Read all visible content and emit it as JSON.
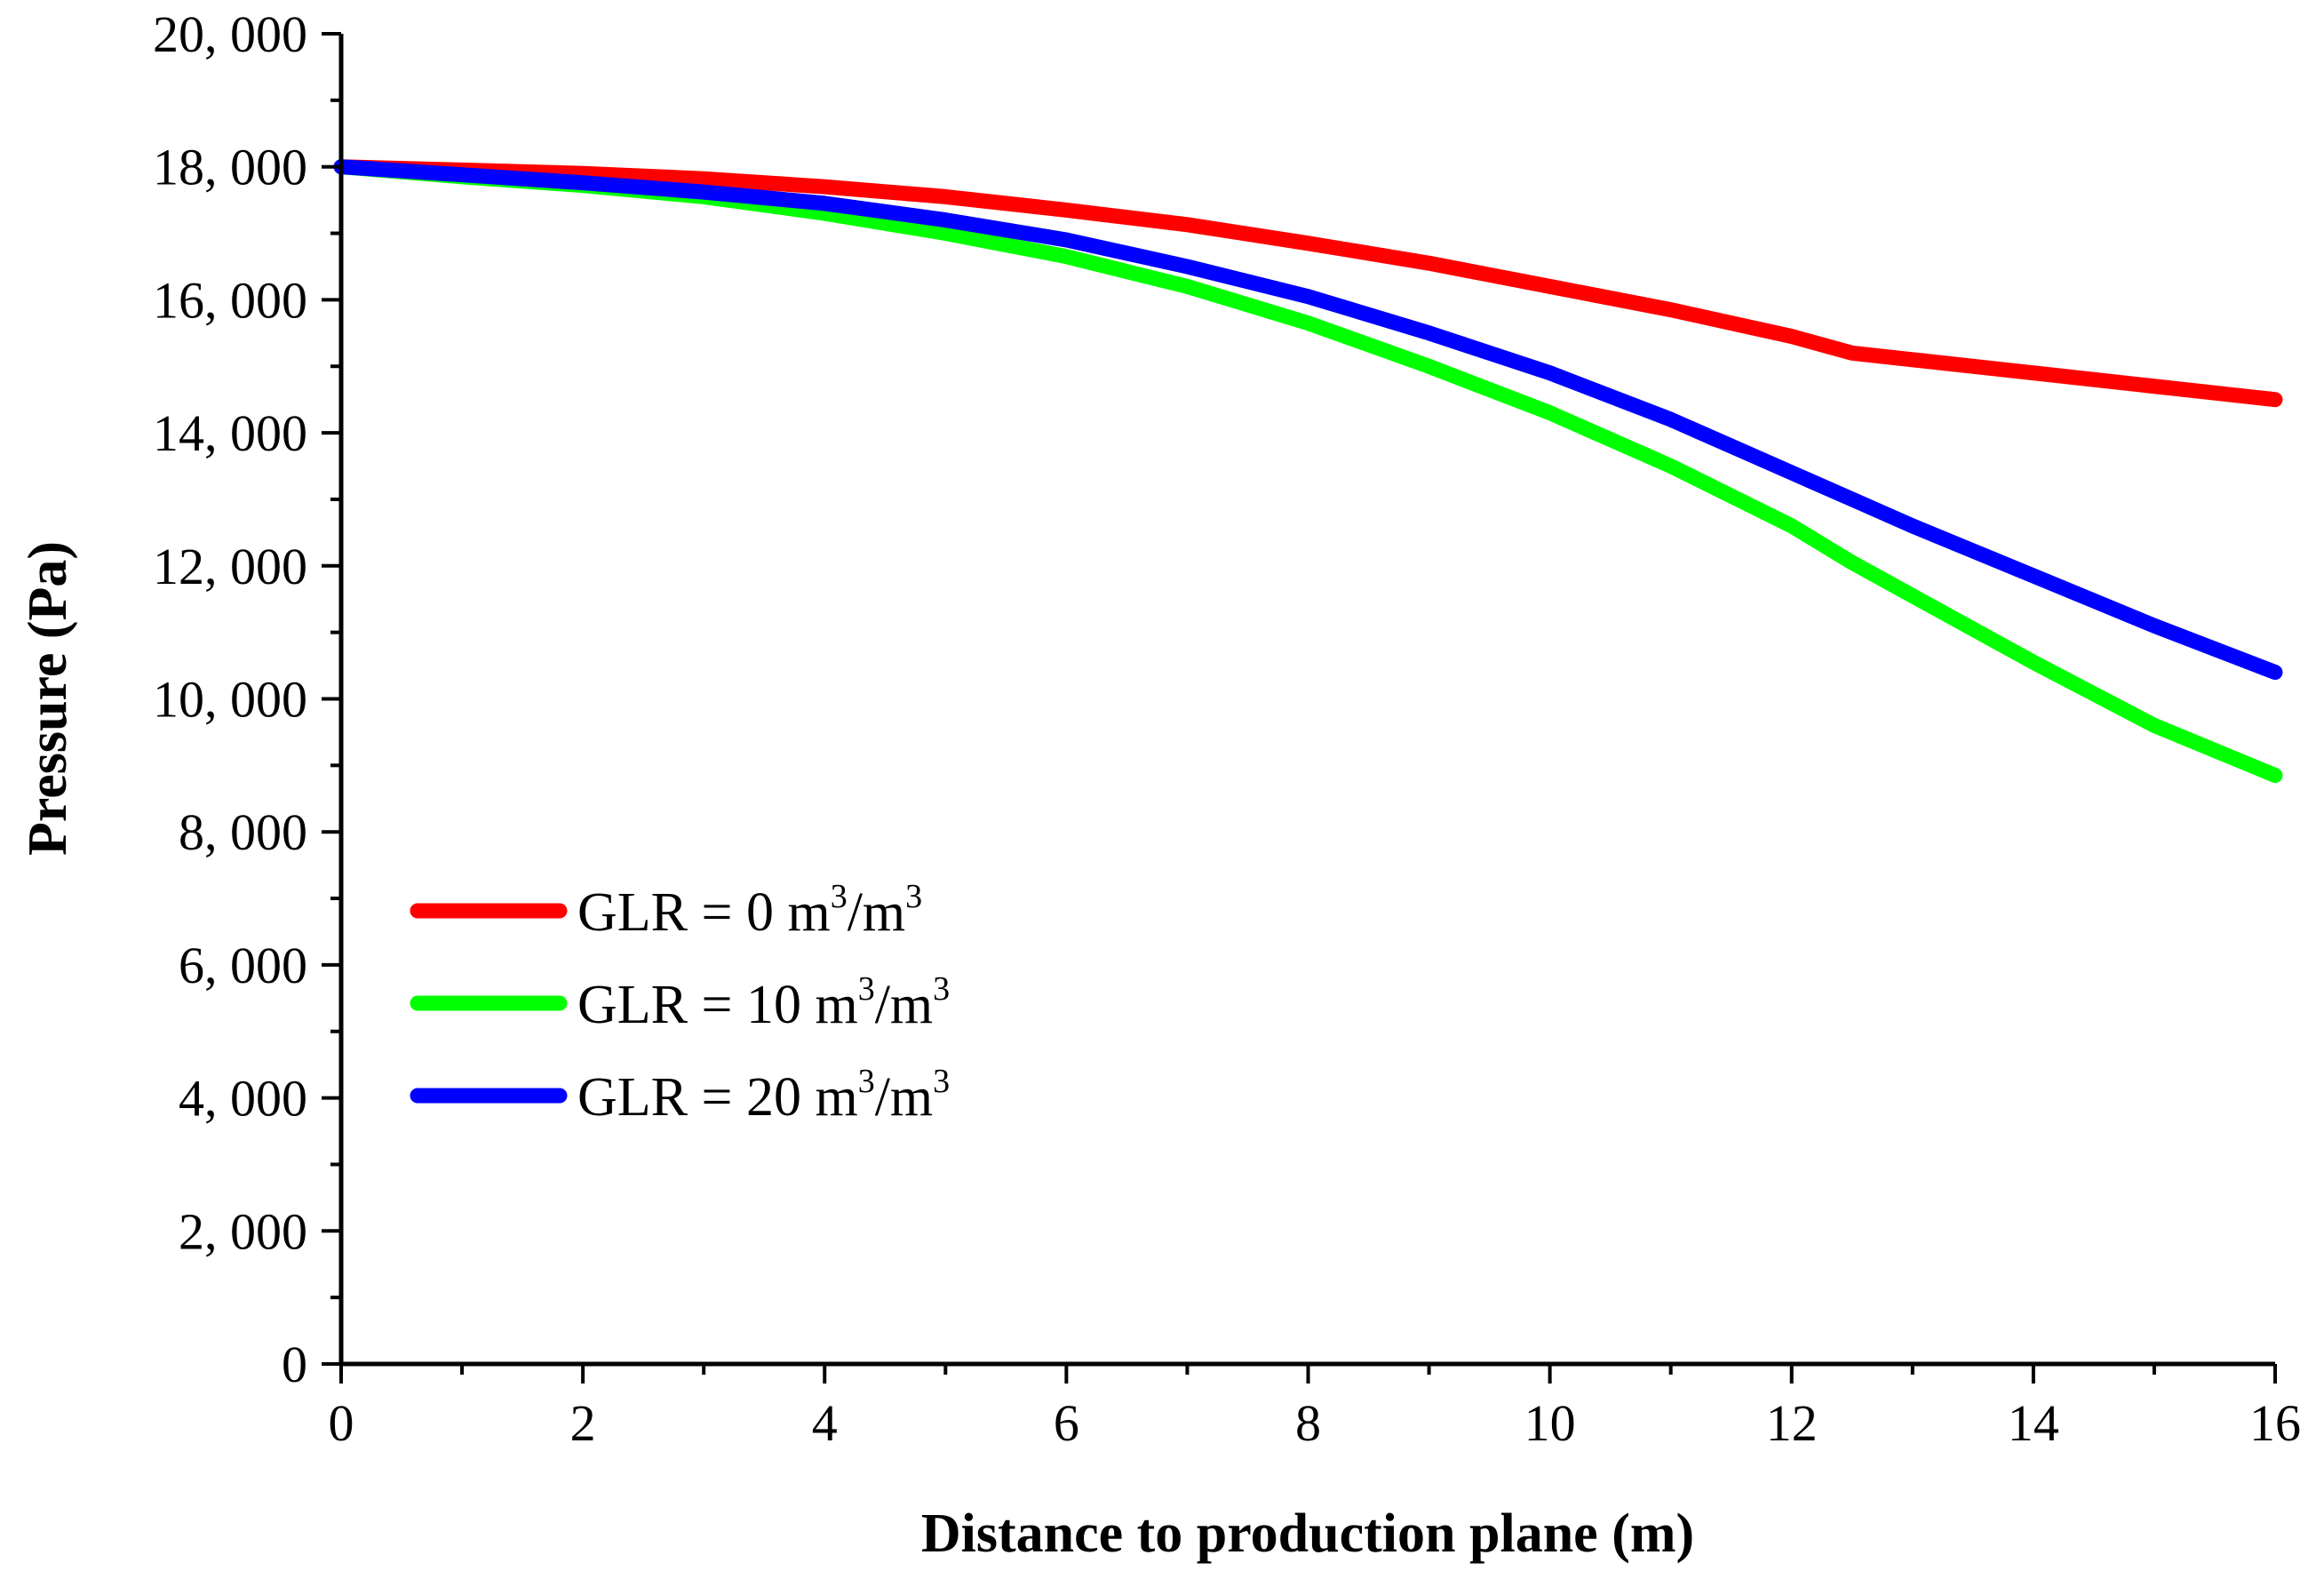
{
  "chart_data": {
    "type": "line",
    "title": "",
    "xlabel": "Distance to production plane (m)",
    "ylabel": "Pressure (Pa)",
    "xlim": [
      0,
      16
    ],
    "ylim": [
      0,
      20000
    ],
    "x_ticks": [
      0,
      2,
      4,
      6,
      8,
      10,
      12,
      14,
      16
    ],
    "x_tick_labels": [
      "0",
      "2",
      "4",
      "6",
      "8",
      "10",
      "12",
      "14",
      "16"
    ],
    "y_ticks": [
      0,
      2000,
      4000,
      6000,
      8000,
      10000,
      12000,
      14000,
      16000,
      18000,
      20000
    ],
    "y_tick_labels": [
      "0",
      "2, 000",
      "4, 000",
      "6, 000",
      "8, 000",
      "10, 000",
      "12, 000",
      "14, 000",
      "16, 000",
      "18, 000",
      "20, 000"
    ],
    "grid": false,
    "legend_position": "left-middle",
    "series": [
      {
        "name": "GLR = 0 m3/m3",
        "legend_prefix": "GLR = 0 m",
        "legend_sup1": "3",
        "legend_mid": "/m",
        "legend_sup2": "3",
        "color": "#ff0000",
        "x": [
          0,
          1,
          2,
          3,
          4,
          5,
          6,
          7,
          8,
          9,
          10,
          11,
          12,
          12.5,
          13,
          14,
          15,
          16
        ],
        "y": [
          18000,
          17950,
          17900,
          17820,
          17700,
          17550,
          17350,
          17130,
          16850,
          16550,
          16200,
          15850,
          15450,
          15200,
          15100,
          14900,
          14700,
          14500
        ]
      },
      {
        "name": "GLR = 10 m3/m3",
        "legend_prefix": "GLR = 10 m",
        "legend_sup1": "3",
        "legend_mid": "/m",
        "legend_sup2": "3",
        "color": "#00ff00",
        "x": [
          0,
          1,
          2,
          3,
          4,
          5,
          6,
          7,
          8,
          9,
          10,
          11,
          12,
          12.5,
          13,
          14,
          15,
          16
        ],
        "y": [
          18000,
          17850,
          17720,
          17550,
          17300,
          17000,
          16650,
          16200,
          15650,
          15000,
          14300,
          13500,
          12600,
          12050,
          11550,
          10550,
          9600,
          8850
        ]
      },
      {
        "name": "GLR = 20 m3/m3",
        "legend_prefix": "GLR = 20 m",
        "legend_sup1": "3",
        "legend_mid": "/m",
        "legend_sup2": "3",
        "color": "#0000ff",
        "x": [
          0,
          1,
          2,
          3,
          4,
          5,
          6,
          7,
          8,
          9,
          10,
          11,
          12,
          12.5,
          13,
          14,
          15,
          16
        ],
        "y": [
          18000,
          17880,
          17760,
          17620,
          17450,
          17200,
          16900,
          16500,
          16050,
          15500,
          14900,
          14200,
          13400,
          13000,
          12600,
          11850,
          11100,
          10400
        ]
      }
    ]
  }
}
